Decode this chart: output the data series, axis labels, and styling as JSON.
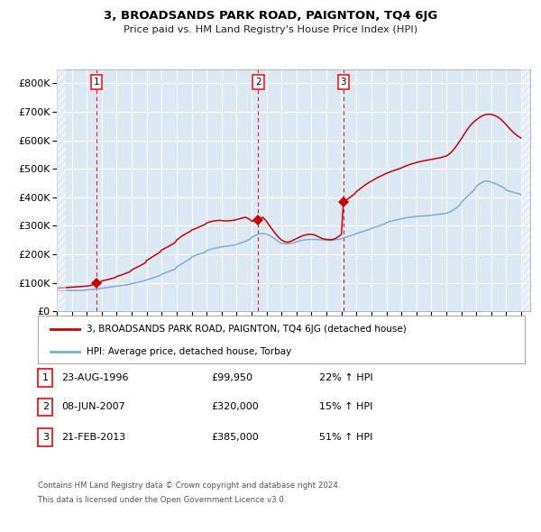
{
  "title": "3, BROADSANDS PARK ROAD, PAIGNTON, TQ4 6JG",
  "subtitle": "Price paid vs. HM Land Registry's House Price Index (HPI)",
  "legend_line1": "3, BROADSANDS PARK ROAD, PAIGNTON, TQ4 6JG (detached house)",
  "legend_line2": "HPI: Average price, detached house, Torbay",
  "footer1": "Contains HM Land Registry data © Crown copyright and database right 2024.",
  "footer2": "This data is licensed under the Open Government Licence v3.0.",
  "transactions": [
    {
      "label": "1",
      "date": "23-AUG-1996",
      "price_str": "£99,950",
      "pct": "22%",
      "dir": "↑",
      "x_year": 1996.65,
      "price": 99950
    },
    {
      "label": "2",
      "date": "08-JUN-2007",
      "price_str": "£320,000",
      "pct": "15%",
      "dir": "↑",
      "x_year": 2007.44,
      "price": 320000
    },
    {
      "label": "3",
      "date": "21-FEB-2013",
      "price_str": "£385,000",
      "pct": "51%",
      "dir": "↑",
      "x_year": 2013.13,
      "price": 385000
    }
  ],
  "hpi_color": "#7bafd4",
  "price_color": "#cc0000",
  "bg_color": "#dce9f5",
  "hatch_color": "#c8d8e8",
  "ylim": [
    0,
    850000
  ],
  "xlim_start": 1994.0,
  "xlim_end": 2025.6,
  "yticks": [
    0,
    100000,
    200000,
    300000,
    400000,
    500000,
    600000,
    700000,
    800000
  ],
  "ytick_labels": [
    "£0",
    "£100K",
    "£200K",
    "£300K",
    "£400K",
    "£500K",
    "£600K",
    "£700K",
    "£800K"
  ],
  "xticks": [
    1994,
    1995,
    1996,
    1997,
    1998,
    1999,
    2000,
    2001,
    2002,
    2003,
    2004,
    2005,
    2006,
    2007,
    2008,
    2009,
    2010,
    2011,
    2012,
    2013,
    2014,
    2015,
    2016,
    2017,
    2018,
    2019,
    2020,
    2021,
    2022,
    2023,
    2024,
    2025
  ],
  "hpi_data": [
    [
      1994.0,
      72000
    ],
    [
      1994.3,
      72500
    ],
    [
      1994.6,
      72800
    ],
    [
      1994.9,
      73000
    ],
    [
      1995.0,
      72500
    ],
    [
      1995.3,
      72800
    ],
    [
      1995.6,
      73200
    ],
    [
      1995.9,
      73800
    ],
    [
      1996.0,
      75000
    ],
    [
      1996.3,
      76000
    ],
    [
      1996.6,
      77500
    ],
    [
      1996.9,
      79000
    ],
    [
      1997.0,
      81000
    ],
    [
      1997.3,
      83000
    ],
    [
      1997.6,
      85000
    ],
    [
      1997.9,
      87000
    ],
    [
      1998.0,
      88000
    ],
    [
      1998.3,
      90000
    ],
    [
      1998.6,
      92000
    ],
    [
      1998.9,
      95000
    ],
    [
      1999.0,
      97000
    ],
    [
      1999.3,
      100000
    ],
    [
      1999.6,
      104000
    ],
    [
      1999.9,
      108000
    ],
    [
      2000.0,
      110000
    ],
    [
      2000.3,
      115000
    ],
    [
      2000.6,
      120000
    ],
    [
      2000.9,
      126000
    ],
    [
      2001.0,
      130000
    ],
    [
      2001.3,
      136000
    ],
    [
      2001.6,
      142000
    ],
    [
      2001.9,
      148000
    ],
    [
      2002.0,
      155000
    ],
    [
      2002.3,
      165000
    ],
    [
      2002.6,
      175000
    ],
    [
      2002.9,
      184000
    ],
    [
      2003.0,
      190000
    ],
    [
      2003.3,
      197000
    ],
    [
      2003.6,
      202000
    ],
    [
      2003.9,
      207000
    ],
    [
      2004.0,
      212000
    ],
    [
      2004.3,
      218000
    ],
    [
      2004.6,
      222000
    ],
    [
      2004.9,
      225000
    ],
    [
      2005.0,
      226000
    ],
    [
      2005.3,
      228000
    ],
    [
      2005.6,
      230000
    ],
    [
      2005.9,
      233000
    ],
    [
      2006.0,
      235000
    ],
    [
      2006.3,
      240000
    ],
    [
      2006.6,
      246000
    ],
    [
      2006.9,
      253000
    ],
    [
      2007.0,
      259000
    ],
    [
      2007.2,
      265000
    ],
    [
      2007.44,
      270000
    ],
    [
      2007.6,
      273000
    ],
    [
      2007.9,
      272000
    ],
    [
      2008.2,
      266000
    ],
    [
      2008.5,
      256000
    ],
    [
      2008.8,
      244000
    ],
    [
      2009.0,
      238000
    ],
    [
      2009.3,
      236000
    ],
    [
      2009.6,
      238000
    ],
    [
      2009.9,
      241000
    ],
    [
      2010.0,
      244000
    ],
    [
      2010.3,
      248000
    ],
    [
      2010.6,
      251000
    ],
    [
      2010.9,
      252000
    ],
    [
      2011.0,
      252000
    ],
    [
      2011.3,
      252000
    ],
    [
      2011.6,
      251000
    ],
    [
      2011.9,
      250000
    ],
    [
      2012.0,
      249000
    ],
    [
      2012.3,
      249000
    ],
    [
      2012.6,
      251000
    ],
    [
      2012.9,
      253000
    ],
    [
      2013.0,
      255000
    ],
    [
      2013.13,
      258000
    ],
    [
      2013.3,
      260000
    ],
    [
      2013.6,
      265000
    ],
    [
      2013.9,
      270000
    ],
    [
      2014.0,
      273000
    ],
    [
      2014.3,
      278000
    ],
    [
      2014.6,
      283000
    ],
    [
      2014.9,
      288000
    ],
    [
      2015.0,
      291000
    ],
    [
      2015.3,
      296000
    ],
    [
      2015.6,
      301000
    ],
    [
      2015.9,
      307000
    ],
    [
      2016.0,
      311000
    ],
    [
      2016.3,
      316000
    ],
    [
      2016.6,
      320000
    ],
    [
      2016.9,
      323000
    ],
    [
      2017.0,
      325000
    ],
    [
      2017.3,
      328000
    ],
    [
      2017.6,
      330000
    ],
    [
      2017.9,
      332000
    ],
    [
      2018.0,
      333000
    ],
    [
      2018.3,
      334000
    ],
    [
      2018.6,
      335000
    ],
    [
      2018.9,
      336000
    ],
    [
      2019.0,
      337000
    ],
    [
      2019.3,
      339000
    ],
    [
      2019.6,
      341000
    ],
    [
      2019.9,
      343000
    ],
    [
      2020.0,
      344000
    ],
    [
      2020.3,
      350000
    ],
    [
      2020.6,
      360000
    ],
    [
      2020.9,
      373000
    ],
    [
      2021.0,
      382000
    ],
    [
      2021.3,
      398000
    ],
    [
      2021.6,
      413000
    ],
    [
      2021.9,
      428000
    ],
    [
      2022.0,
      438000
    ],
    [
      2022.3,
      450000
    ],
    [
      2022.6,
      457000
    ],
    [
      2022.9,
      456000
    ],
    [
      2023.0,
      453000
    ],
    [
      2023.3,
      448000
    ],
    [
      2023.6,
      440000
    ],
    [
      2023.9,
      432000
    ],
    [
      2024.0,
      425000
    ],
    [
      2024.3,
      420000
    ],
    [
      2024.6,
      416000
    ],
    [
      2024.9,
      412000
    ],
    [
      2025.0,
      408000
    ]
  ],
  "price_data": [
    [
      1994.0,
      81000
    ],
    [
      1994.3,
      82000
    ],
    [
      1994.6,
      83000
    ],
    [
      1994.9,
      84000
    ],
    [
      1995.0,
      84500
    ],
    [
      1995.3,
      85000
    ],
    [
      1995.6,
      86000
    ],
    [
      1995.9,
      87000
    ],
    [
      1996.0,
      88000
    ],
    [
      1996.3,
      91000
    ],
    [
      1996.65,
      99950
    ],
    [
      1996.9,
      103000
    ],
    [
      1997.0,
      106000
    ],
    [
      1997.3,
      110000
    ],
    [
      1997.6,
      114000
    ],
    [
      1997.9,
      118000
    ],
    [
      1998.0,
      122000
    ],
    [
      1998.3,
      127000
    ],
    [
      1998.6,
      133000
    ],
    [
      1998.9,
      139000
    ],
    [
      1999.0,
      145000
    ],
    [
      1999.3,
      153000
    ],
    [
      1999.6,
      161000
    ],
    [
      1999.9,
      170000
    ],
    [
      2000.0,
      178000
    ],
    [
      2000.3,
      188000
    ],
    [
      2000.6,
      198000
    ],
    [
      2000.9,
      208000
    ],
    [
      2001.0,
      215000
    ],
    [
      2001.3,
      223000
    ],
    [
      2001.6,
      232000
    ],
    [
      2001.9,
      241000
    ],
    [
      2002.0,
      250000
    ],
    [
      2002.3,
      262000
    ],
    [
      2002.6,
      272000
    ],
    [
      2002.9,
      280000
    ],
    [
      2003.0,
      285000
    ],
    [
      2003.3,
      291000
    ],
    [
      2003.6,
      298000
    ],
    [
      2003.9,
      305000
    ],
    [
      2004.0,
      310000
    ],
    [
      2004.3,
      315000
    ],
    [
      2004.6,
      318000
    ],
    [
      2004.9,
      319000
    ],
    [
      2005.0,
      318000
    ],
    [
      2005.3,
      317000
    ],
    [
      2005.6,
      318000
    ],
    [
      2005.9,
      320000
    ],
    [
      2006.0,
      322000
    ],
    [
      2006.3,
      326000
    ],
    [
      2006.6,
      330000
    ],
    [
      2006.9,
      322000
    ],
    [
      2007.0,
      316000
    ],
    [
      2007.2,
      318000
    ],
    [
      2007.44,
      320000
    ],
    [
      2007.6,
      325000
    ],
    [
      2007.75,
      330000
    ],
    [
      2008.0,
      316000
    ],
    [
      2008.2,
      300000
    ],
    [
      2008.4,
      286000
    ],
    [
      2008.6,
      272000
    ],
    [
      2008.8,
      260000
    ],
    [
      2009.0,
      250000
    ],
    [
      2009.2,
      244000
    ],
    [
      2009.4,
      242000
    ],
    [
      2009.6,
      245000
    ],
    [
      2009.8,
      250000
    ],
    [
      2010.0,
      255000
    ],
    [
      2010.2,
      260000
    ],
    [
      2010.4,
      265000
    ],
    [
      2010.6,
      268000
    ],
    [
      2010.8,
      270000
    ],
    [
      2011.0,
      270000
    ],
    [
      2011.2,
      268000
    ],
    [
      2011.4,
      263000
    ],
    [
      2011.6,
      258000
    ],
    [
      2011.8,
      254000
    ],
    [
      2012.0,
      252000
    ],
    [
      2012.2,
      251000
    ],
    [
      2012.4,
      252000
    ],
    [
      2012.6,
      255000
    ],
    [
      2012.8,
      262000
    ],
    [
      2013.0,
      270000
    ],
    [
      2013.13,
      385000
    ],
    [
      2013.3,
      390000
    ],
    [
      2013.5,
      397000
    ],
    [
      2013.7,
      405000
    ],
    [
      2013.9,
      413000
    ],
    [
      2014.0,
      420000
    ],
    [
      2014.2,
      428000
    ],
    [
      2014.4,
      436000
    ],
    [
      2014.6,
      444000
    ],
    [
      2014.8,
      451000
    ],
    [
      2015.0,
      457000
    ],
    [
      2015.2,
      463000
    ],
    [
      2015.4,
      469000
    ],
    [
      2015.6,
      474000
    ],
    [
      2015.8,
      479000
    ],
    [
      2016.0,
      484000
    ],
    [
      2016.2,
      488000
    ],
    [
      2016.4,
      492000
    ],
    [
      2016.6,
      496000
    ],
    [
      2016.8,
      499000
    ],
    [
      2017.0,
      503000
    ],
    [
      2017.2,
      508000
    ],
    [
      2017.4,
      512000
    ],
    [
      2017.6,
      516000
    ],
    [
      2017.8,
      519000
    ],
    [
      2018.0,
      522000
    ],
    [
      2018.2,
      525000
    ],
    [
      2018.4,
      527000
    ],
    [
      2018.6,
      529000
    ],
    [
      2018.8,
      531000
    ],
    [
      2019.0,
      533000
    ],
    [
      2019.2,
      535000
    ],
    [
      2019.4,
      537000
    ],
    [
      2019.6,
      539000
    ],
    [
      2019.8,
      542000
    ],
    [
      2020.0,
      545000
    ],
    [
      2020.2,
      552000
    ],
    [
      2020.4,
      562000
    ],
    [
      2020.6,
      575000
    ],
    [
      2020.8,
      590000
    ],
    [
      2021.0,
      605000
    ],
    [
      2021.2,
      622000
    ],
    [
      2021.4,
      638000
    ],
    [
      2021.6,
      652000
    ],
    [
      2021.8,
      663000
    ],
    [
      2022.0,
      672000
    ],
    [
      2022.2,
      680000
    ],
    [
      2022.4,
      686000
    ],
    [
      2022.6,
      690000
    ],
    [
      2022.8,
      692000
    ],
    [
      2023.0,
      691000
    ],
    [
      2023.2,
      688000
    ],
    [
      2023.4,
      683000
    ],
    [
      2023.6,
      676000
    ],
    [
      2023.8,
      666000
    ],
    [
      2024.0,
      655000
    ],
    [
      2024.2,
      643000
    ],
    [
      2024.4,
      632000
    ],
    [
      2024.6,
      622000
    ],
    [
      2024.8,
      614000
    ],
    [
      2025.0,
      608000
    ]
  ]
}
